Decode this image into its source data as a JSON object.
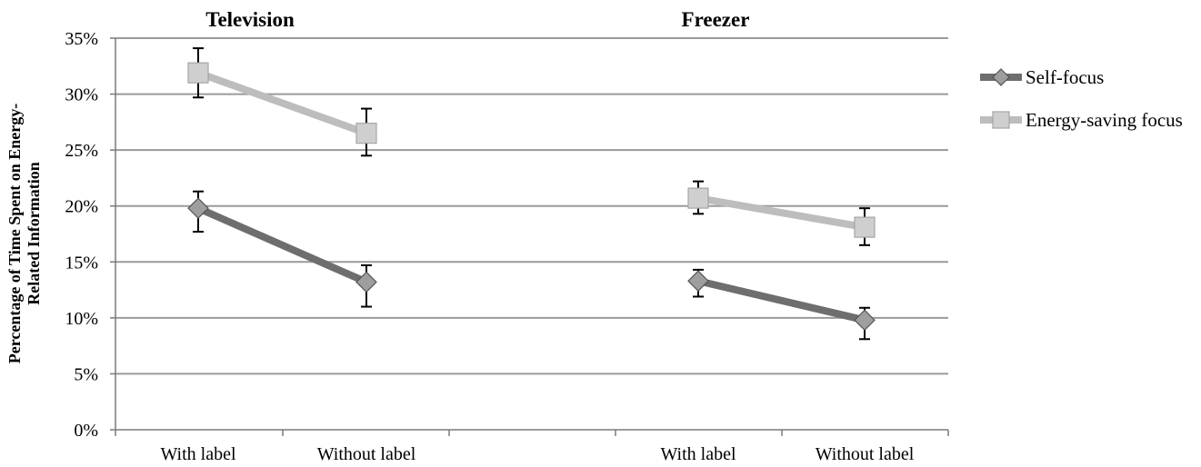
{
  "chart_data": {
    "type": "line",
    "groups": [
      {
        "title": "Television",
        "categories": [
          "With label",
          "Without label"
        ]
      },
      {
        "title": "Freezer",
        "categories": [
          "With label",
          "Without label"
        ]
      }
    ],
    "ylabel": "Percentage of Time Spent on Energy-Related Information",
    "ylabel_lines": [
      "Percentage of Time Spent on Energy-",
      "Related Information"
    ],
    "ylim": [
      0,
      35
    ],
    "yticks": [
      "0%",
      "5%",
      "10%",
      "15%",
      "20%",
      "25%",
      "30%",
      "35%"
    ],
    "grid": true,
    "legend_position": "right",
    "series": [
      {
        "name": "Self-focus",
        "marker": "diamond",
        "color": "#6e6e6e",
        "values": [
          [
            19.8,
            13.2
          ],
          [
            13.3,
            9.8
          ]
        ],
        "error_low": [
          [
            17.7,
            11.0
          ],
          [
            11.9,
            8.1
          ]
        ],
        "error_high": [
          [
            21.3,
            14.7
          ],
          [
            14.3,
            10.9
          ]
        ]
      },
      {
        "name": "Energy-saving focus",
        "marker": "square",
        "color": "#bdbdbd",
        "values": [
          [
            31.9,
            26.5
          ],
          [
            20.7,
            18.1
          ]
        ],
        "error_low": [
          [
            29.7,
            24.5
          ],
          [
            19.3,
            16.5
          ]
        ],
        "error_high": [
          [
            34.1,
            28.7
          ],
          [
            22.2,
            19.8
          ]
        ]
      }
    ]
  }
}
